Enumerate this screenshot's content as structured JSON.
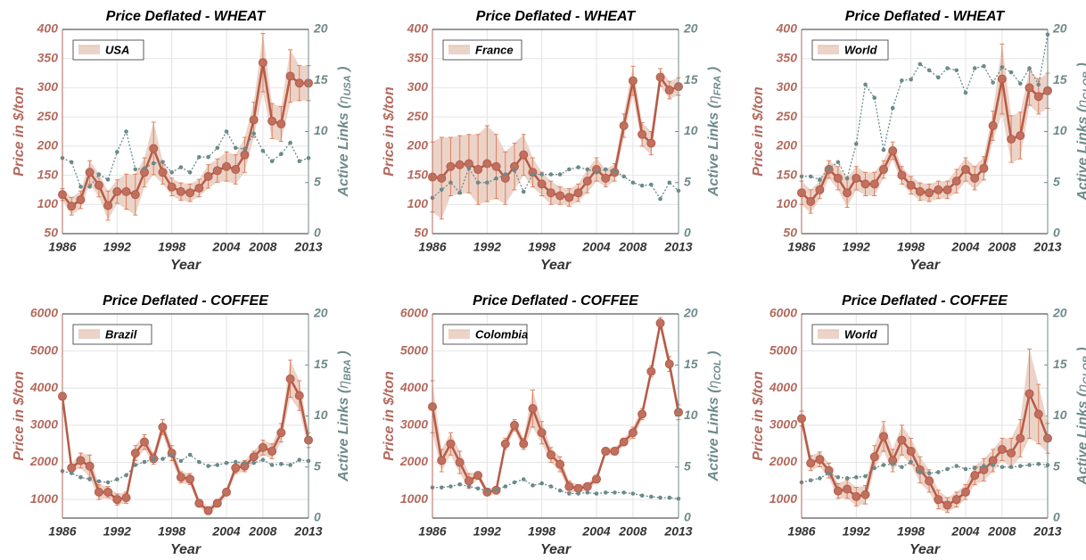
{
  "chart_data": [
    {
      "type": "line",
      "title": "Price Deflated - WHEAT",
      "xlabel": "Year",
      "ylabel": "Price in $/ton",
      "y2label": {
        "text": "Active Links (",
        "symbol": "η",
        "sub": "USA",
        "close": " )"
      },
      "x": [
        1986,
        1987,
        1988,
        1989,
        1990,
        1991,
        1992,
        1993,
        1994,
        1995,
        1996,
        1997,
        1998,
        1999,
        2000,
        2001,
        2002,
        2003,
        2004,
        2005,
        2006,
        2007,
        2008,
        2009,
        2010,
        2011,
        2012,
        2013
      ],
      "xlim": [
        1986,
        2013
      ],
      "xticks": [
        1986,
        1992,
        1998,
        2004,
        2008,
        2013
      ],
      "ylim": [
        50,
        400
      ],
      "yticks": [
        50,
        100,
        150,
        200,
        250,
        300,
        350,
        400
      ],
      "y2lim": [
        0,
        20
      ],
      "y2ticks": [
        0,
        5,
        10,
        15,
        20
      ],
      "grid": true,
      "legend": "upper left",
      "series": [
        {
          "name": "USA",
          "color": "#b65a47",
          "band_color": "#ecd3c8",
          "values": [
            117,
            97,
            108,
            155,
            133,
            98,
            122,
            122,
            117,
            155,
            196,
            155,
            130,
            122,
            120,
            128,
            148,
            158,
            165,
            160,
            185,
            245,
            343,
            243,
            238,
            320,
            308,
            308
          ],
          "errors": [
            10,
            15,
            15,
            20,
            20,
            25,
            20,
            30,
            35,
            25,
            45,
            20,
            15,
            15,
            15,
            15,
            20,
            20,
            25,
            25,
            30,
            30,
            50,
            30,
            30,
            45,
            30,
            30
          ]
        },
        {
          "color": "#6b8a8a",
          "axis": "y2",
          "values": [
            7.4,
            7.0,
            4.6,
            4.6,
            5.8,
            5.3,
            8.0,
            10.0,
            6.3,
            6.4,
            6.9,
            7.0,
            6.0,
            6.5,
            6.0,
            7.5,
            7.5,
            8.4,
            10.0,
            8.4,
            8.3,
            9.8,
            8.1,
            7.1,
            7.8,
            8.9,
            7.1,
            7.4
          ]
        }
      ]
    },
    {
      "type": "line",
      "title": "Price Deflated - WHEAT",
      "xlabel": "Year",
      "ylabel": "Price in $/ton",
      "y2label": {
        "text": "Active Links (",
        "symbol": "η",
        "sub": "FRA",
        "close": " )"
      },
      "x": [
        1986,
        1987,
        1988,
        1989,
        1990,
        1991,
        1992,
        1993,
        1994,
        1995,
        1996,
        1997,
        1998,
        1999,
        2000,
        2001,
        2002,
        2003,
        2004,
        2005,
        2006,
        2007,
        2008,
        2009,
        2010,
        2011,
        2012,
        2013
      ],
      "xlim": [
        1986,
        2013
      ],
      "xticks": [
        1986,
        1992,
        1998,
        2004,
        2008,
        2013
      ],
      "ylim": [
        50,
        400
      ],
      "yticks": [
        50,
        100,
        150,
        200,
        250,
        300,
        350,
        400
      ],
      "y2lim": [
        0,
        20
      ],
      "y2ticks": [
        0,
        5,
        10,
        15,
        20
      ],
      "grid": true,
      "legend": "upper left",
      "series": [
        {
          "name": "France",
          "color": "#b65a47",
          "band_color": "#ecd3c8",
          "values": [
            147,
            145,
            165,
            168,
            170,
            160,
            170,
            165,
            145,
            165,
            185,
            155,
            135,
            120,
            115,
            112,
            120,
            140,
            160,
            145,
            155,
            235,
            312,
            220,
            205,
            318,
            296,
            302
          ],
          "errors": [
            60,
            70,
            50,
            50,
            50,
            60,
            65,
            55,
            45,
            40,
            35,
            25,
            20,
            20,
            15,
            15,
            15,
            20,
            20,
            15,
            15,
            20,
            25,
            20,
            20,
            15,
            15,
            15
          ]
        },
        {
          "color": "#6b8a8a",
          "axis": "y2",
          "values": [
            3.5,
            4.3,
            5.0,
            4.0,
            6.4,
            5.0,
            5.0,
            5.4,
            5.8,
            6.2,
            4.1,
            5.8,
            5.8,
            5.8,
            5.8,
            6.3,
            6.5,
            6.3,
            6.0,
            6.3,
            6.1,
            5.6,
            5.0,
            4.7,
            4.8,
            3.4,
            5.0,
            4.2
          ]
        }
      ]
    },
    {
      "type": "line",
      "title": "Price Deflated - WHEAT",
      "xlabel": "Year",
      "ylabel": "Price in $/ton",
      "y2label": {
        "text": "Active Links (",
        "symbol": "η",
        "sub": "GLOB",
        "close": " )"
      },
      "x": [
        1986,
        1987,
        1988,
        1989,
        1990,
        1991,
        1992,
        1993,
        1994,
        1995,
        1996,
        1997,
        1998,
        1999,
        2000,
        2001,
        2002,
        2003,
        2004,
        2005,
        2006,
        2007,
        2008,
        2009,
        2010,
        2011,
        2012,
        2013
      ],
      "xlim": [
        1986,
        2013
      ],
      "xticks": [
        1986,
        1992,
        1998,
        2004,
        2008,
        2013
      ],
      "ylim": [
        50,
        400
      ],
      "yticks": [
        50,
        100,
        150,
        200,
        250,
        300,
        350,
        400
      ],
      "y2lim": [
        0,
        20
      ],
      "y2ticks": [
        0,
        5,
        10,
        15,
        20
      ],
      "grid": true,
      "legend": "upper left",
      "series": [
        {
          "name": "World",
          "color": "#b65a47",
          "band_color": "#ecd3c8",
          "values": [
            120,
            105,
            125,
            160,
            145,
            120,
            145,
            135,
            135,
            160,
            192,
            150,
            133,
            122,
            120,
            125,
            125,
            140,
            160,
            145,
            162,
            235,
            315,
            212,
            218,
            300,
            285,
            295
          ],
          "errors": [
            20,
            20,
            15,
            15,
            20,
            25,
            20,
            20,
            20,
            15,
            15,
            15,
            15,
            15,
            15,
            15,
            15,
            20,
            20,
            20,
            20,
            25,
            60,
            40,
            40,
            30,
            30,
            30
          ]
        },
        {
          "color": "#6b8a8a",
          "axis": "y2",
          "values": [
            5.6,
            5.6,
            5.3,
            6.4,
            7.0,
            5.4,
            8.8,
            14.6,
            13.3,
            8.2,
            12.3,
            15.0,
            15.1,
            16.6,
            16.0,
            15.3,
            16.2,
            16.0,
            13.8,
            16.2,
            16.4,
            14.8,
            16.3,
            15.8,
            14.7,
            16.2,
            14.6,
            19.5
          ]
        }
      ]
    },
    {
      "type": "line",
      "title": "Price Deflated - COFFEE",
      "xlabel": "Year",
      "ylabel": "Price in $/ton",
      "y2label": {
        "text": "Active Links (",
        "symbol": "η",
        "sub": "BRA",
        "close": " )"
      },
      "x": [
        1986,
        1987,
        1988,
        1989,
        1990,
        1991,
        1992,
        1993,
        1994,
        1995,
        1996,
        1997,
        1998,
        1999,
        2000,
        2001,
        2002,
        2003,
        2004,
        2005,
        2006,
        2007,
        2008,
        2009,
        2010,
        2011,
        2012,
        2013
      ],
      "xlim": [
        1986,
        2013
      ],
      "xticks": [
        1986,
        1992,
        1998,
        2004,
        2008,
        2013
      ],
      "ylim": [
        500,
        6000
      ],
      "yticks": [
        1000,
        2000,
        3000,
        4000,
        5000,
        6000
      ],
      "y2lim": [
        0,
        20
      ],
      "y2ticks": [
        0,
        5,
        10,
        15,
        20
      ],
      "grid": true,
      "legend": "upper left",
      "series": [
        {
          "name": "Brazil",
          "color": "#b65a47",
          "band_color": "#ecd3c8",
          "values": [
            3780,
            1850,
            2050,
            1900,
            1200,
            1200,
            1000,
            1050,
            2250,
            2550,
            2100,
            2950,
            2250,
            1600,
            1550,
            900,
            700,
            900,
            1200,
            1850,
            1900,
            2150,
            2400,
            2300,
            2800,
            4250,
            3800,
            2600
          ],
          "errors": [
            100,
            100,
            200,
            300,
            200,
            150,
            150,
            150,
            200,
            200,
            150,
            200,
            200,
            150,
            150,
            100,
            100,
            100,
            100,
            150,
            150,
            150,
            200,
            200,
            250,
            500,
            400,
            200
          ]
        },
        {
          "color": "#6b8a8a",
          "axis": "y2",
          "values": [
            4.6,
            4.4,
            4.0,
            3.8,
            3.6,
            3.5,
            3.8,
            4.2,
            5.2,
            5.5,
            5.8,
            5.8,
            6.2,
            5.6,
            6.2,
            5.5,
            5.1,
            5.2,
            5.4,
            5.5,
            5.4,
            5.4,
            5.7,
            5.2,
            5.3,
            5.2,
            5.7,
            5.6
          ]
        }
      ]
    },
    {
      "type": "line",
      "title": "Price Deflated - COFFEE",
      "xlabel": "Year",
      "ylabel": "Price in $/ton",
      "y2label": {
        "text": "Active Links (",
        "symbol": "η",
        "sub": "COL",
        "close": " )"
      },
      "x": [
        1986,
        1987,
        1988,
        1989,
        1990,
        1991,
        1992,
        1993,
        1994,
        1995,
        1996,
        1997,
        1998,
        1999,
        2000,
        2001,
        2002,
        2003,
        2004,
        2005,
        2006,
        2007,
        2008,
        2009,
        2010,
        2011,
        2012,
        2013
      ],
      "xlim": [
        1986,
        2013
      ],
      "xticks": [
        1986,
        1992,
        1998,
        2004,
        2008,
        2013
      ],
      "ylim": [
        500,
        6000
      ],
      "yticks": [
        1000,
        2000,
        3000,
        4000,
        5000,
        6000
      ],
      "y2lim": [
        0,
        20
      ],
      "y2ticks": [
        0,
        5,
        10,
        15,
        20
      ],
      "grid": true,
      "legend": "upper left",
      "series": [
        {
          "name": "Colombia",
          "color": "#b65a47",
          "band_color": "#ecd3c8",
          "values": [
            3500,
            2050,
            2500,
            2000,
            1500,
            1650,
            1200,
            1250,
            2500,
            3000,
            2500,
            3450,
            2800,
            2200,
            1950,
            1350,
            1300,
            1350,
            1550,
            2300,
            2300,
            2550,
            2800,
            3300,
            4450,
            5750,
            4650,
            3350
          ],
          "errors": [
            700,
            300,
            300,
            300,
            200,
            100,
            100,
            100,
            150,
            150,
            150,
            500,
            300,
            200,
            200,
            150,
            100,
            100,
            100,
            100,
            100,
            100,
            150,
            150,
            150,
            150,
            200,
            200
          ]
        },
        {
          "color": "#6b8a8a",
          "axis": "y2",
          "values": [
            3.0,
            3.0,
            3.1,
            3.3,
            3.1,
            2.9,
            2.7,
            2.8,
            3.1,
            3.5,
            3.8,
            3.2,
            3.4,
            3.1,
            2.7,
            2.4,
            2.4,
            2.5,
            2.4,
            2.5,
            2.5,
            2.5,
            2.4,
            2.2,
            2.1,
            2.0,
            2.0,
            1.9
          ]
        }
      ]
    },
    {
      "type": "line",
      "title": "Price Deflated - COFFEE",
      "xlabel": "Year",
      "ylabel": "Price in $/ton",
      "y2label": {
        "text": "Active Links (",
        "symbol": "η",
        "sub": "GLOB",
        "close": " )"
      },
      "x": [
        1986,
        1987,
        1988,
        1989,
        1990,
        1991,
        1992,
        1993,
        1994,
        1995,
        1996,
        1997,
        1998,
        1999,
        2000,
        2001,
        2002,
        2003,
        2004,
        2005,
        2006,
        2007,
        2008,
        2009,
        2010,
        2011,
        2012,
        2013
      ],
      "xlim": [
        1986,
        2013
      ],
      "xticks": [
        1986,
        1992,
        1998,
        2004,
        2008,
        2013
      ],
      "ylim": [
        500,
        6000
      ],
      "yticks": [
        1000,
        2000,
        3000,
        4000,
        5000,
        6000
      ],
      "y2lim": [
        0,
        20
      ],
      "y2ticks": [
        0,
        5,
        10,
        15,
        20
      ],
      "grid": true,
      "legend": "upper left",
      "series": [
        {
          "name": "World",
          "color": "#b65a47",
          "band_color": "#ecd3c8",
          "values": [
            3180,
            1980,
            2080,
            1780,
            1230,
            1280,
            1080,
            1130,
            2150,
            2700,
            2050,
            2600,
            2300,
            1800,
            1500,
            1000,
            850,
            1000,
            1200,
            1650,
            1800,
            2050,
            2350,
            2250,
            2650,
            3850,
            3300,
            2650
          ],
          "errors": [
            200,
            200,
            200,
            200,
            200,
            250,
            250,
            250,
            300,
            400,
            300,
            400,
            350,
            350,
            300,
            250,
            200,
            200,
            200,
            250,
            300,
            300,
            300,
            400,
            500,
            1200,
            800,
            400
          ]
        },
        {
          "color": "#6b8a8a",
          "axis": "y2",
          "values": [
            3.5,
            3.7,
            3.9,
            4.4,
            4.0,
            3.9,
            4.0,
            4.1,
            4.9,
            5.2,
            5.3,
            5.0,
            5.5,
            4.5,
            4.4,
            4.5,
            4.8,
            5.1,
            4.8,
            4.9,
            5.1,
            5.2,
            5.0,
            5.0,
            5.1,
            5.2,
            5.3,
            5.2
          ]
        }
      ]
    }
  ]
}
